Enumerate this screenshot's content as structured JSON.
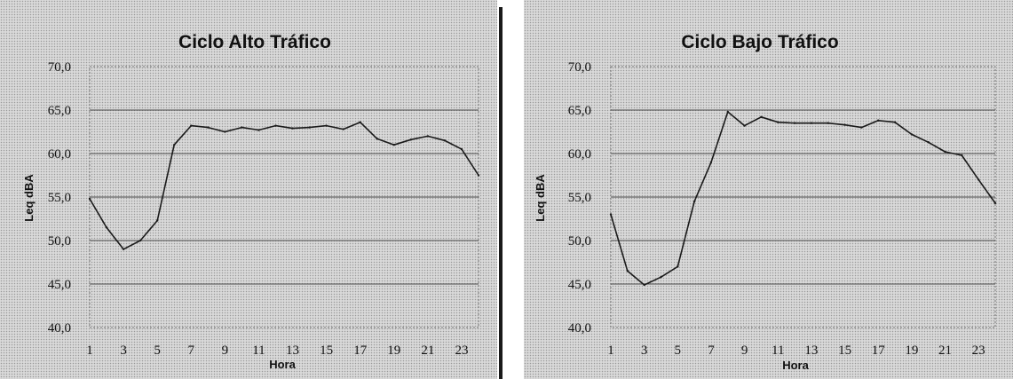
{
  "chart_data": [
    {
      "type": "line",
      "title": "Ciclo Alto Tráfico",
      "xlabel": "Hora",
      "ylabel": "Leq dBA",
      "ylim": [
        40,
        70
      ],
      "yticks": [
        "40,0",
        "45,0",
        "50,0",
        "55,0",
        "60,0",
        "65,0",
        "70,0"
      ],
      "xticks": [
        "1",
        "3",
        "5",
        "7",
        "9",
        "11",
        "13",
        "15",
        "17",
        "19",
        "21",
        "23"
      ],
      "grid": true,
      "x": [
        1,
        2,
        3,
        4,
        5,
        6,
        7,
        8,
        9,
        10,
        11,
        12,
        13,
        14,
        15,
        16,
        17,
        18,
        19,
        20,
        21,
        22,
        23,
        24
      ],
      "values": [
        54.8,
        51.5,
        49.0,
        50.0,
        52.3,
        61.0,
        63.2,
        63.0,
        62.5,
        63.0,
        62.7,
        63.2,
        62.9,
        63.0,
        63.2,
        62.8,
        63.6,
        61.7,
        61.0,
        61.6,
        62.0,
        61.5,
        60.5,
        57.5
      ],
      "line_color": "#1a1a1a"
    },
    {
      "type": "line",
      "title": "Ciclo Bajo Tráfico",
      "xlabel": "Hora",
      "ylabel": "Leq dBA",
      "ylim": [
        40,
        70
      ],
      "yticks": [
        "40,0",
        "45,0",
        "50,0",
        "55,0",
        "60,0",
        "65,0",
        "70,0"
      ],
      "xticks": [
        "1",
        "3",
        "5",
        "7",
        "9",
        "11",
        "13",
        "15",
        "17",
        "19",
        "21",
        "23"
      ],
      "grid": true,
      "x": [
        1,
        2,
        3,
        4,
        5,
        6,
        7,
        8,
        9,
        10,
        11,
        12,
        13,
        14,
        15,
        16,
        17,
        18,
        19,
        20,
        21,
        22,
        23,
        24
      ],
      "values": [
        53.0,
        46.5,
        44.9,
        45.8,
        47.0,
        54.5,
        59.0,
        64.8,
        63.2,
        64.2,
        63.6,
        63.5,
        63.5,
        63.5,
        63.3,
        63.0,
        63.8,
        63.6,
        62.2,
        61.3,
        60.2,
        59.8,
        57.0,
        54.3
      ],
      "line_color": "#1a1a1a"
    }
  ]
}
